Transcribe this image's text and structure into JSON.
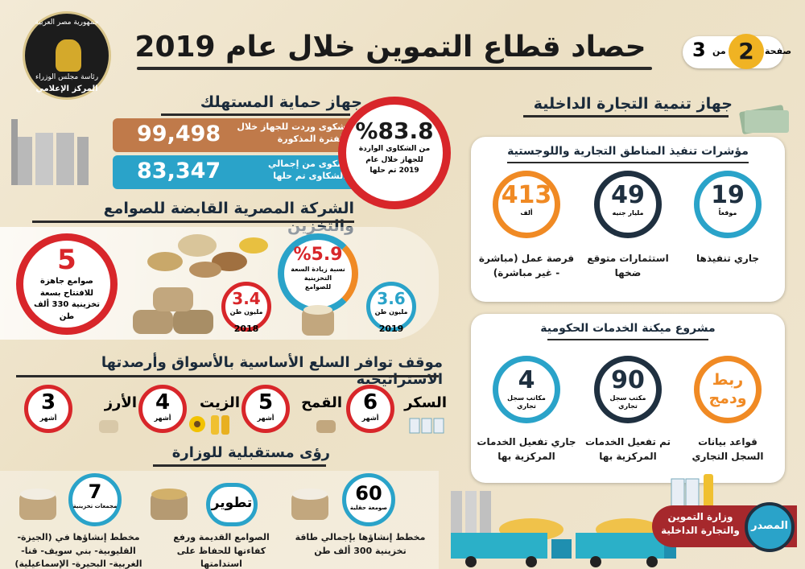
{
  "header": {
    "title": "حصاد قطاع التموين خلال عام 2019",
    "page_label": "صفحة",
    "page_num": "2",
    "of_label": "من",
    "total": "3"
  },
  "logo": {
    "line1": "جمهورية مصر العربية",
    "line2": "رئاسة مجلس الوزراء",
    "line3": "المركز الإعلامي"
  },
  "consumer": {
    "heading": "جهاز حماية المستهلك",
    "row1_label": "شكوى وردت للجهاز خلال الفترة المذكورة",
    "row1_value": "99,498",
    "row2_label": "شكوى من إجمالي الشكاوى تم حلها",
    "row2_value": "83,347",
    "pct": "%83.8",
    "pct_label": "من الشكاوى الواردة للجهاز خلال عام 2019 تم حلها"
  },
  "silos": {
    "heading": "الشركة المصرية القابضة للصوامع والتخزين",
    "ready_num": "5",
    "ready_label": "صوامع جاهزة للافتتاح بسعة تخزينية 330 ألف طن",
    "pct": "%5.9",
    "pct_label": "نسبة زيادة السعة التخزينية للصوامع",
    "y2018_val": "3.4",
    "y2018_unit": "مليون طن",
    "y2018": "2018",
    "y2019_val": "3.6",
    "y2019_unit": "مليون طن",
    "y2019": "2019"
  },
  "commodities": {
    "heading": "موقف توافر السلع الأساسية بالأسواق وأرصدتها الاستراتيجية",
    "items": [
      {
        "name": "السكر",
        "months": "6",
        "unit": "أشهر"
      },
      {
        "name": "القمح",
        "months": "5",
        "unit": "أشهر"
      },
      {
        "name": "الزيت",
        "months": "4",
        "unit": "أشهر"
      },
      {
        "name": "الأرز",
        "months": "3",
        "unit": "أشهر"
      }
    ]
  },
  "vision": {
    "heading": "رؤى مستقبلية للوزارة",
    "items": [
      {
        "num": "60",
        "sub": "صومعة حقلية",
        "desc": "مخطط إنشاؤها بإجمالي طاقة تخزينية 300 ألف طن"
      },
      {
        "num": "تطوير",
        "sub": "",
        "desc": "الصوامع القديمة ورفع كفاءتها للحفاظ على استدامتها"
      },
      {
        "num": "7",
        "sub": "مجمعات تخزينية",
        "desc": "مخطط إنشاؤها في (الجيزة- القليوبية- بني سويف- قنا- الغربية- البحيرة- الإسماعيلية)"
      }
    ]
  },
  "trade": {
    "heading": "جهاز تنمية التجارة الداخلية",
    "zones_heading": "مؤشرات تنفيذ المناطق التجارية واللوجستية",
    "zones": [
      {
        "num": "19",
        "unit": "موقعاً",
        "label": "جاري تنفيذها",
        "color": "#2aa3c9"
      },
      {
        "num": "49",
        "unit": "مليار جنيه",
        "label": "استثمارات متوقع ضخها",
        "color": "#1f3040"
      },
      {
        "num": "413",
        "unit": "ألف",
        "label": "فرصة عمل (مباشرة - غير مباشرة)",
        "color": "#f08a24"
      }
    ],
    "gov_heading": "مشروع ميكنة الخدمات الحكومية",
    "gov": [
      {
        "num": "ربط ودمج",
        "unit": "",
        "label": "قواعد بيانات السجل التجاري",
        "color": "#f08a24"
      },
      {
        "num": "90",
        "unit": "مكتب سجل تجاري",
        "label": "تم تفعيل الخدمات المركزية بها",
        "color": "#1f3040"
      },
      {
        "num": "4",
        "unit": "مكاتب سجل تجاري",
        "label": "جاري تفعيل الخدمات المركزية بها",
        "color": "#2aa3c9"
      }
    ]
  },
  "source": {
    "label": "المصدر",
    "value": "وزارة التموين والتجارة الداخلية"
  },
  "colors": {
    "orange": "#f08a24",
    "blue": "#2aa3c9",
    "navy": "#1f3040",
    "red": "#d8262a",
    "brown": "#c07a4a"
  }
}
